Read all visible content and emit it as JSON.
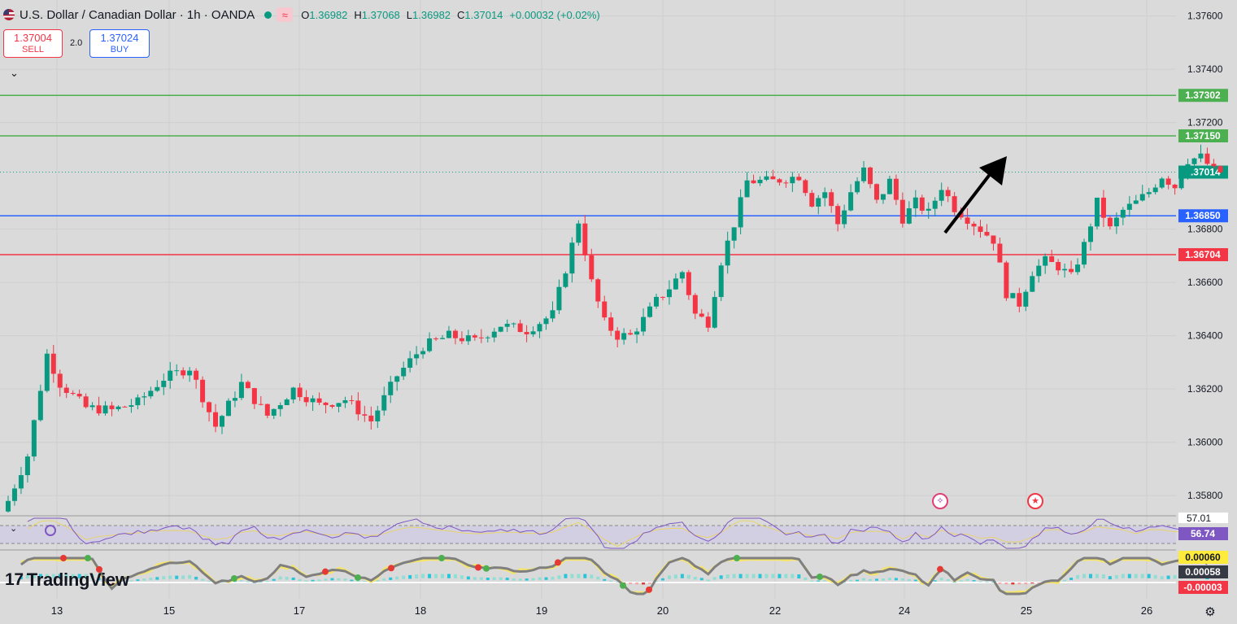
{
  "header": {
    "title": "U.S. Dollar / Canadian Dollar · 1h · OANDA",
    "indicator_glyph": "≈",
    "ohlc": [
      {
        "k": "O",
        "v": "1.36982"
      },
      {
        "k": "H",
        "v": "1.37068"
      },
      {
        "k": "L",
        "v": "1.36982"
      },
      {
        "k": "C",
        "v": "1.37014"
      },
      {
        "k": "",
        "v": "+0.00032 (+0.02%)"
      }
    ]
  },
  "trade": {
    "sell_price": "1.37004",
    "sell_label": "SELL",
    "spread": "2.0",
    "buy_price": "1.37024",
    "buy_label": "BUY"
  },
  "branding": {
    "logo_text": "TradingView",
    "logo_mark": "17"
  },
  "colors": {
    "up": "#089981",
    "down": "#f23645",
    "support_blue": "#2962ff",
    "resist_green": "#4caf50",
    "level_red": "#f23645",
    "rsi": "#7e57c2",
    "macd_line": "#7f7f7f",
    "signal_line": "#f5e56b"
  },
  "chart_data": {
    "type": "candlestick",
    "symbol": "USDCAD",
    "interval": "1h",
    "y_ticks": [
      "1.37600",
      "1.37400",
      "1.37200",
      "1.36800",
      "1.36600",
      "1.36400",
      "1.36200",
      "1.36000",
      "1.35800"
    ],
    "x_ticks": [
      "13",
      "15",
      "17",
      "18",
      "19",
      "20",
      "22",
      "24",
      "25",
      "26"
    ],
    "ylim": [
      1.3573,
      1.3766
    ],
    "horizontal_levels": [
      {
        "price": 1.37302,
        "label": "1.37302",
        "color": "#4caf50"
      },
      {
        "price": 1.3715,
        "label": "1.37150",
        "color": "#4caf50"
      },
      {
        "price": 1.3685,
        "label": "1.36850",
        "color": "#2962ff"
      },
      {
        "price": 1.36704,
        "label": "1.36704",
        "color": "#f23645"
      }
    ],
    "last_price": {
      "price": 1.37014,
      "label": "1.37014"
    },
    "close_path": [
      [
        0,
        1.3578
      ],
      [
        3,
        1.3595
      ],
      [
        6,
        1.3633
      ],
      [
        8,
        1.3622
      ],
      [
        12,
        1.3613
      ],
      [
        16,
        1.3612
      ],
      [
        20,
        1.3615
      ],
      [
        24,
        1.3624
      ],
      [
        28,
        1.3628
      ],
      [
        32,
        1.3606
      ],
      [
        36,
        1.3622
      ],
      [
        40,
        1.361
      ],
      [
        44,
        1.362
      ],
      [
        48,
        1.3614
      ],
      [
        52,
        1.3616
      ],
      [
        56,
        1.3608
      ],
      [
        60,
        1.3625
      ],
      [
        64,
        1.3636
      ],
      [
        68,
        1.364
      ],
      [
        72,
        1.3638
      ],
      [
        76,
        1.3644
      ],
      [
        80,
        1.3642
      ],
      [
        84,
        1.3648
      ],
      [
        86,
        1.3665
      ],
      [
        88,
        1.3683
      ],
      [
        90,
        1.366
      ],
      [
        92,
        1.3645
      ],
      [
        94,
        1.364
      ],
      [
        96,
        1.364
      ],
      [
        98,
        1.3646
      ],
      [
        100,
        1.3653
      ],
      [
        102,
        1.3658
      ],
      [
        104,
        1.3664
      ],
      [
        106,
        1.3648
      ],
      [
        108,
        1.3645
      ],
      [
        110,
        1.3668
      ],
      [
        112,
        1.3682
      ],
      [
        114,
        1.3698
      ],
      [
        118,
        1.3698
      ],
      [
        122,
        1.37
      ],
      [
        124,
        1.369
      ],
      [
        126,
        1.3694
      ],
      [
        128,
        1.3682
      ],
      [
        130,
        1.3694
      ],
      [
        132,
        1.3702
      ],
      [
        134,
        1.369
      ],
      [
        136,
        1.3698
      ],
      [
        138,
        1.3684
      ],
      [
        140,
        1.369
      ],
      [
        142,
        1.3686
      ],
      [
        144,
        1.3696
      ],
      [
        146,
        1.3688
      ],
      [
        148,
        1.3684
      ],
      [
        150,
        1.368
      ],
      [
        152,
        1.3676
      ],
      [
        154,
        1.3656
      ],
      [
        156,
        1.3652
      ],
      [
        158,
        1.3664
      ],
      [
        160,
        1.3668
      ],
      [
        162,
        1.3666
      ],
      [
        164,
        1.3662
      ],
      [
        166,
        1.3674
      ],
      [
        168,
        1.369
      ],
      [
        170,
        1.368
      ],
      [
        172,
        1.3687
      ],
      [
        174,
        1.369
      ],
      [
        176,
        1.3694
      ],
      [
        178,
        1.37
      ],
      [
        180,
        1.3696
      ],
      [
        182,
        1.3706
      ],
      [
        184,
        1.3707
      ],
      [
        186,
        1.3702
      ],
      [
        187,
        1.37014
      ]
    ],
    "rsi": {
      "value": "56.74",
      "level_label": "57.01"
    },
    "macd": {
      "labels": [
        "0.00060",
        "0.00058",
        "-0.00003"
      ]
    }
  }
}
